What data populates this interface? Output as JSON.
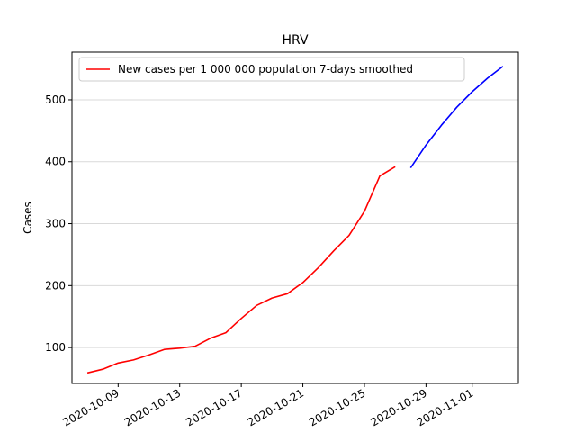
{
  "chart_data": {
    "type": "line",
    "title": "HRV",
    "xlabel": "",
    "ylabel": "Cases",
    "x_range": [
      "2020-10-06",
      "2020-11-04"
    ],
    "ylim": [
      42,
      577
    ],
    "x_ticks": [
      "2020-10-09",
      "2020-10-13",
      "2020-10-17",
      "2020-10-21",
      "2020-10-25",
      "2020-10-29",
      "2020-11-01"
    ],
    "y_ticks": [
      100,
      200,
      300,
      400,
      500
    ],
    "grid": "horizontal",
    "legend_position": "upper-left",
    "series": [
      {
        "name": "New cases per 1 000 000 population 7-days smoothed",
        "color": "#ff0000",
        "x": [
          "2020-10-07",
          "2020-10-08",
          "2020-10-09",
          "2020-10-10",
          "2020-10-11",
          "2020-10-12",
          "2020-10-13",
          "2020-10-14",
          "2020-10-15",
          "2020-10-16",
          "2020-10-17",
          "2020-10-18",
          "2020-10-19",
          "2020-10-20",
          "2020-10-21",
          "2020-10-22",
          "2020-10-23",
          "2020-10-24",
          "2020-10-25",
          "2020-10-26",
          "2020-10-27"
        ],
        "y": [
          59,
          65,
          75,
          80,
          88,
          97,
          99,
          102,
          115,
          124,
          147,
          168,
          180,
          187,
          205,
          229,
          256,
          281,
          320,
          377,
          392
        ]
      },
      {
        "name": "",
        "color": "#0000ff",
        "x": [
          "2020-10-28",
          "2020-10-29",
          "2020-10-30",
          "2020-10-31",
          "2020-11-01",
          "2020-11-02",
          "2020-11-03"
        ],
        "y": [
          390,
          427,
          459,
          488,
          513,
          535,
          554
        ]
      }
    ]
  }
}
